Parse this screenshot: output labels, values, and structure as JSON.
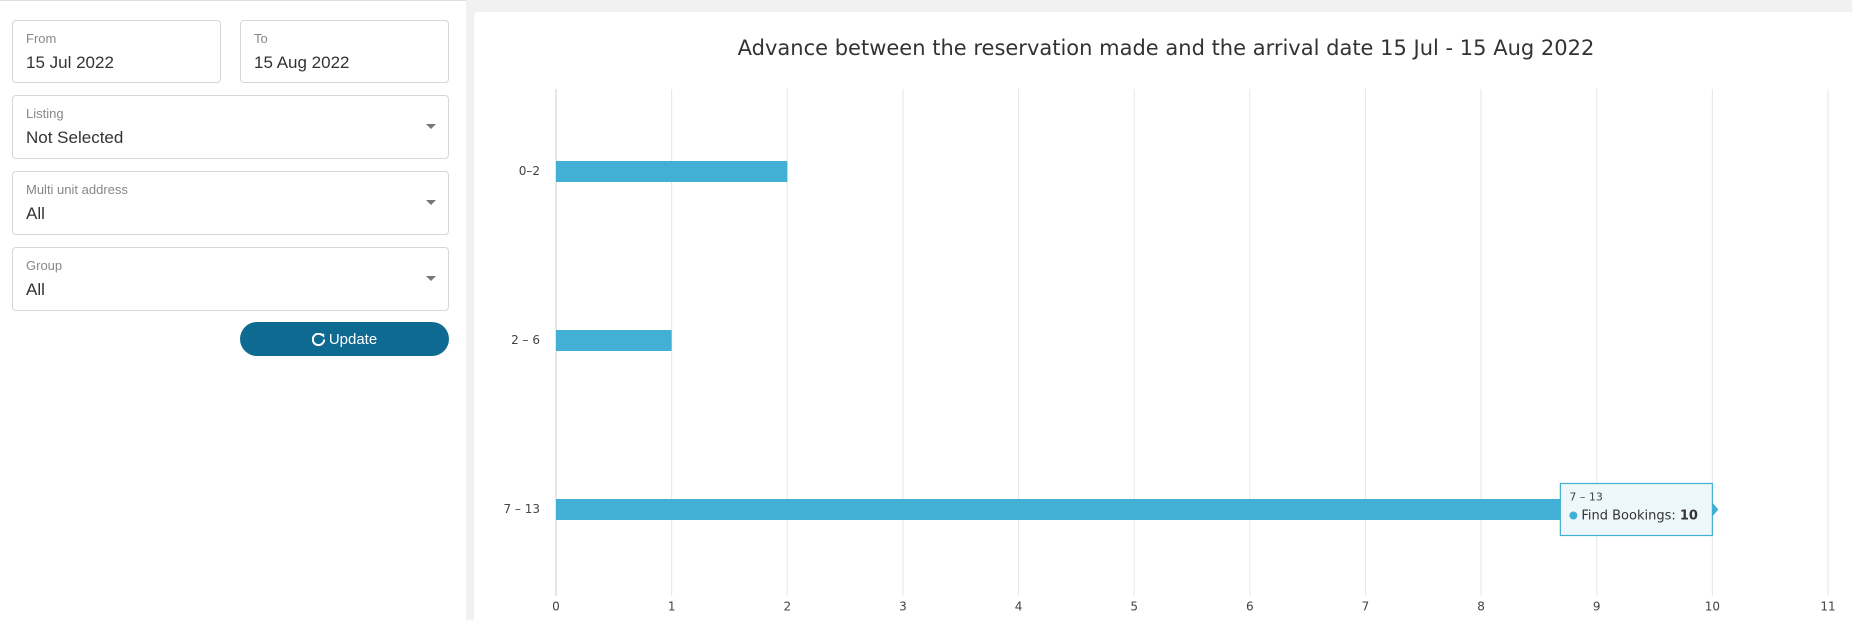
{
  "filters": {
    "from": {
      "label": "From",
      "value": "15 Jul 2022"
    },
    "to": {
      "label": "To",
      "value": "15 Aug 2022"
    },
    "listing": {
      "label": "Listing",
      "value": "Not Selected"
    },
    "multi_unit": {
      "label": "Multi unit address",
      "value": "All"
    },
    "group": {
      "label": "Group",
      "value": "All"
    },
    "button": "Update"
  },
  "chart_data": {
    "type": "bar",
    "orientation": "horizontal",
    "title": "Advance between the reservation made and the arrival date 15 Jul - 15 Aug 2022",
    "categories": [
      "0–2",
      "2 – 6",
      "7 – 13"
    ],
    "series": [
      {
        "name": "Find Bookings",
        "color": "#42b0d5",
        "values": [
          2,
          1,
          10
        ]
      }
    ],
    "xlim": [
      0,
      11
    ],
    "xticks": [
      0,
      1,
      2,
      3,
      4,
      5,
      6,
      7,
      8,
      9,
      10,
      11
    ],
    "grid": true
  }
}
